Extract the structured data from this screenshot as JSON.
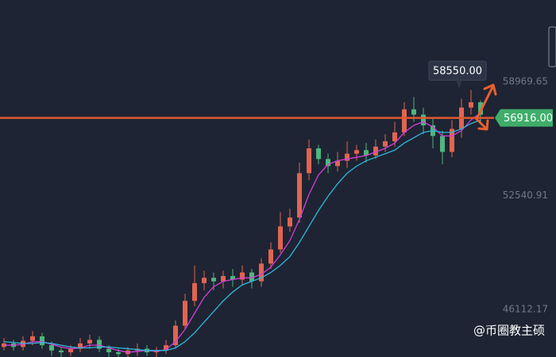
{
  "chart_data": {
    "type": "candlestick",
    "open": [
      44000,
      44200,
      44000,
      44350,
      44600,
      44100,
      43800,
      43700,
      43900,
      44200,
      44400,
      43900,
      43700,
      43600,
      43800,
      43900,
      43700,
      43800,
      44100,
      45200,
      46600,
      47600,
      47900,
      47700,
      48000,
      47800,
      48200,
      47700,
      48700,
      49500,
      50800,
      51300,
      53800,
      55200,
      54600,
      54200,
      54500,
      54900,
      55100,
      54800,
      55300,
      55600,
      56100,
      57400,
      57100,
      56500,
      55900,
      55000,
      56300,
      57500,
      57800
    ],
    "high": [
      44500,
      44400,
      44600,
      44900,
      44800,
      44300,
      44000,
      44100,
      44500,
      44700,
      44600,
      44100,
      43900,
      44000,
      44200,
      44100,
      44000,
      44400,
      45500,
      47000,
      48600,
      48300,
      48200,
      48300,
      48400,
      48600,
      48400,
      49000,
      49900,
      51600,
      51800,
      54400,
      55700,
      55400,
      54900,
      55000,
      55600,
      55400,
      55500,
      55700,
      56000,
      56700,
      57800,
      58100,
      57500,
      56900,
      56200,
      56800,
      58000,
      58500,
      57900
    ],
    "low": [
      43800,
      43800,
      43800,
      44100,
      43900,
      43500,
      43400,
      43500,
      43700,
      43900,
      43700,
      43400,
      43300,
      43400,
      43500,
      43500,
      43400,
      43600,
      43900,
      45000,
      46300,
      47200,
      47200,
      47300,
      47400,
      47500,
      47300,
      47400,
      48400,
      49300,
      50500,
      51000,
      53400,
      54300,
      53800,
      53900,
      54100,
      54500,
      54400,
      54600,
      55000,
      55300,
      55900,
      56700,
      56000,
      55200,
      54300,
      54700,
      55800,
      57100,
      56700
    ],
    "close": [
      44200,
      44000,
      44350,
      44600,
      44100,
      43800,
      43700,
      43900,
      44200,
      44400,
      43900,
      43700,
      43600,
      43800,
      43900,
      43700,
      43800,
      44100,
      45200,
      46600,
      47600,
      47900,
      47700,
      48000,
      47800,
      48200,
      47700,
      48700,
      49500,
      50800,
      51300,
      53800,
      55200,
      54600,
      54200,
      54500,
      54900,
      55100,
      54800,
      55300,
      55600,
      56100,
      57400,
      57100,
      56500,
      55900,
      55000,
      56300,
      57500,
      57800,
      57100
    ],
    "up_color": "#e06552",
    "down_color": "#4fb57f",
    "series": [
      {
        "color": "#d23fd6",
        "values": [
          44100,
          44100,
          44150,
          44300,
          44300,
          44150,
          44000,
          43900,
          43950,
          44100,
          44100,
          43950,
          43800,
          43700,
          43750,
          43800,
          43750,
          43850,
          44300,
          45000,
          45900,
          46800,
          47400,
          47700,
          47800,
          47900,
          47900,
          48100,
          48500,
          49200,
          50000,
          51200,
          52600,
          53700,
          54300,
          54500,
          54600,
          54700,
          54800,
          55000,
          55200,
          55500,
          56100,
          56500,
          56700,
          56400,
          55900,
          55900,
          56200,
          56800,
          57200
        ]
      },
      {
        "color": "#2fb8d8",
        "values": [
          44300,
          44250,
          44200,
          44200,
          44250,
          44200,
          44100,
          44000,
          43950,
          43950,
          44000,
          44000,
          43950,
          43900,
          43850,
          43800,
          43800,
          43800,
          43950,
          44300,
          44800,
          45400,
          46000,
          46600,
          47100,
          47500,
          47700,
          47900,
          48200,
          48600,
          49100,
          49900,
          50800,
          51700,
          52500,
          53200,
          53800,
          54200,
          54500,
          54700,
          54900,
          55100,
          55500,
          55800,
          56100,
          56200,
          56100,
          56100,
          56300,
          56600,
          56800
        ]
      }
    ],
    "ylim": [
      43434,
      63567
    ],
    "yticks": [
      58969.65,
      52540.91,
      46112.17
    ],
    "current_price": {
      "value": 56916,
      "label": "56916.00"
    },
    "tooltip": {
      "value": 58550,
      "label": "58550.00"
    },
    "watermark": "@币圈教主硕"
  }
}
